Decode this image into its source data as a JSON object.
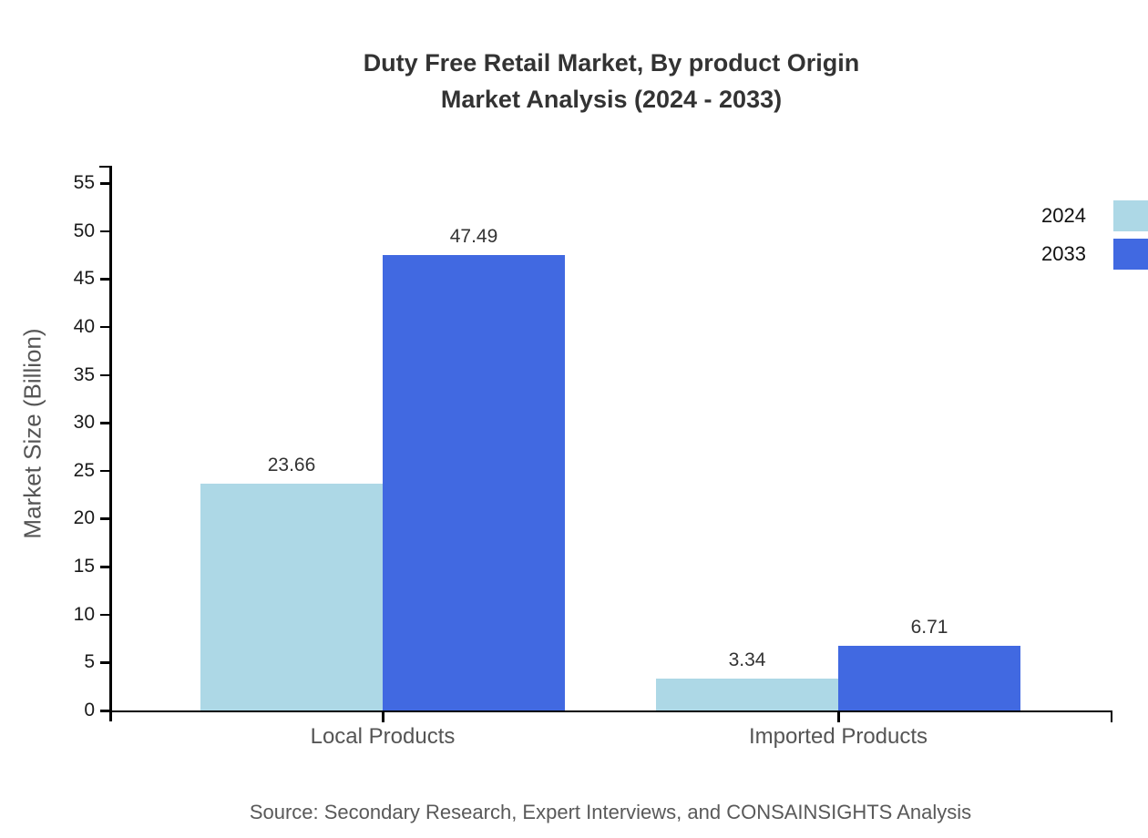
{
  "chart_data": {
    "type": "bar",
    "title_lines": [
      "Duty Free Retail Market, By product Origin",
      "Market Analysis (2024 - 2033)"
    ],
    "categories": [
      "Local Products",
      "Imported Products"
    ],
    "series": [
      {
        "name": "2024",
        "color": "#add8e6",
        "values": [
          23.66,
          3.34
        ]
      },
      {
        "name": "2033",
        "color": "#4169e1",
        "values": [
          47.49,
          6.71
        ]
      }
    ],
    "xlabel": "",
    "ylabel": "Market Size (Billion)",
    "ylim": [
      0,
      55
    ],
    "ytick_step": 5,
    "grid": false,
    "legend_position": "right"
  },
  "source_note": "Source: Secondary Research, Expert Interviews, and CONSAINSIGHTS Analysis"
}
